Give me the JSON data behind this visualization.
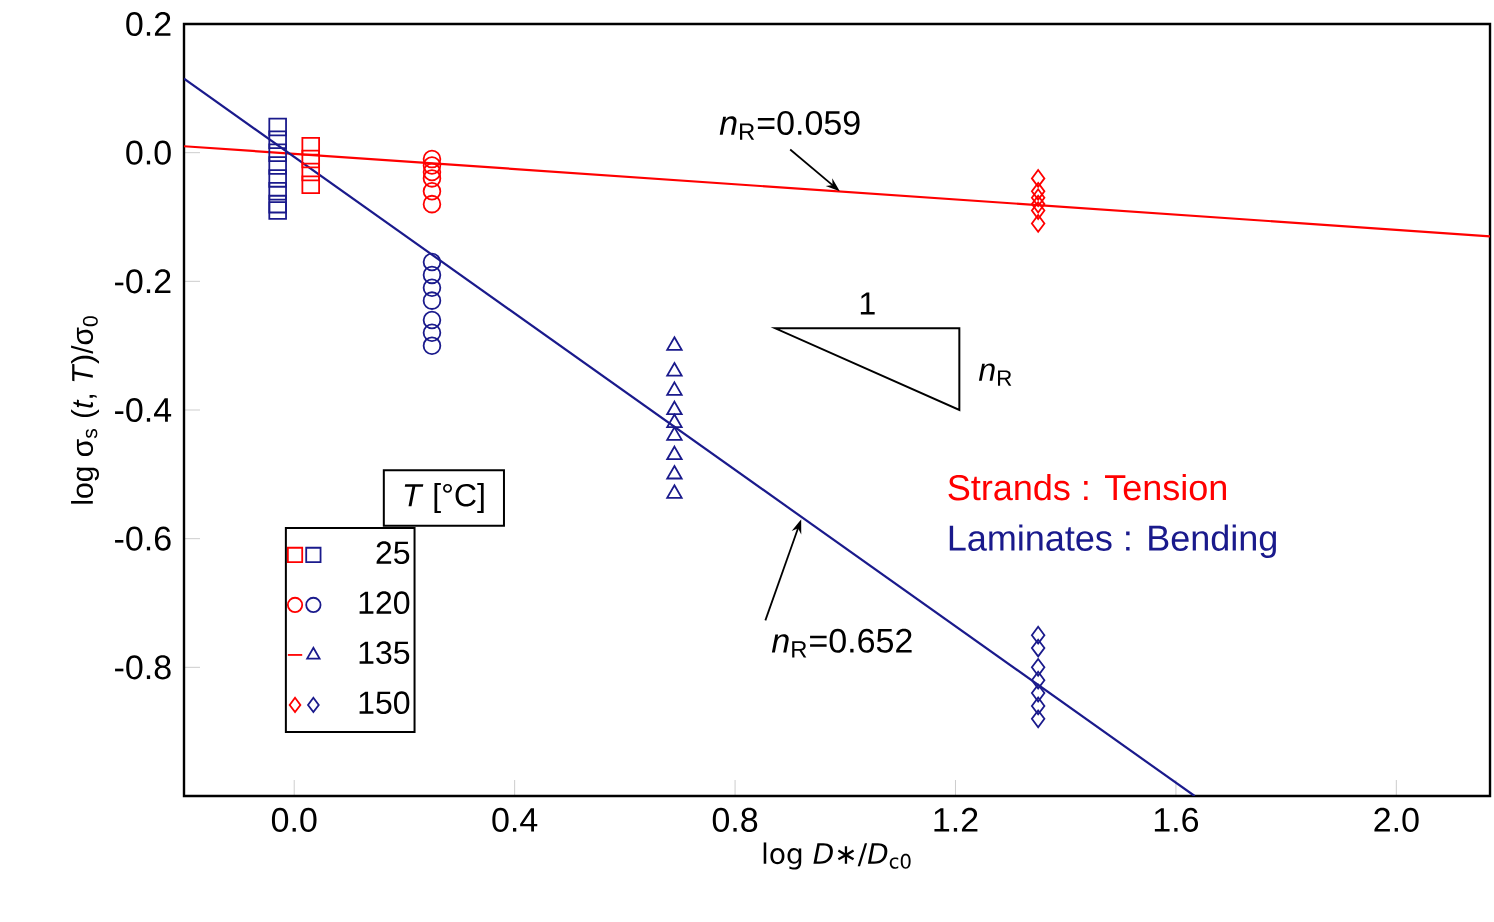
{
  "chart_data": {
    "type": "scatter",
    "xlabel": "log *D*∗/*D*$_{c0}$",
    "ylabel": "log σ$_{s}$ (*t*, *T*)/σ$_{0}$",
    "legend_title": "*T* [°C]",
    "legend": "bottom left",
    "grid": false,
    "xlim": [
      -0.2,
      2.17
    ],
    "ylim": [
      -1.0,
      0.2
    ],
    "xticks": [
      {
        "value": 0,
        "label": "0.0"
      },
      0.4,
      0.8,
      1.2,
      1.6,
      {
        "value": 2,
        "label": "2.0"
      }
    ],
    "yticks": [
      0.2,
      {
        "value": 0,
        "label": "0.0"
      },
      -0.2,
      -0.4,
      -0.6,
      -0.8
    ],
    "series": [
      {
        "color": "#ff0000",
        "marker": "square",
        "x": [
          0.03,
          0.03,
          0.03,
          0.03
        ],
        "values": [
          0.01,
          -0.01,
          -0.03,
          -0.05
        ]
      },
      {
        "color": "#ff0000",
        "marker": "circle",
        "x": [
          0.25,
          0.25,
          0.25,
          0.25,
          0.25,
          0.25
        ],
        "values": [
          -0.01,
          -0.02,
          -0.03,
          -0.04,
          -0.06,
          -0.08
        ]
      },
      {
        "color": "#ff0000",
        "marker": "minus"
      },
      {
        "color": "#ff0000",
        "marker": "diamond",
        "x": [
          1.35,
          1.35,
          1.35,
          1.35,
          1.35,
          1.35
        ],
        "values": [
          -0.04,
          -0.06,
          -0.07,
          -0.08,
          -0.09,
          -0.11
        ]
      },
      {
        "name": "25",
        "color": "#1a1a8c",
        "marker": "square",
        "x": [
          -0.03,
          -0.03,
          -0.03,
          -0.03,
          -0.03,
          -0.03,
          -0.03,
          -0.03
        ],
        "values": [
          0.04,
          0.02,
          0.0,
          -0.02,
          -0.04,
          -0.06,
          -0.08,
          -0.09
        ]
      },
      {
        "name": "120",
        "color": "#1a1a8c",
        "marker": "circle",
        "x": [
          0.25,
          0.25,
          0.25,
          0.25,
          0.25,
          0.25,
          0.25
        ],
        "values": [
          -0.17,
          -0.19,
          -0.21,
          -0.23,
          -0.26,
          -0.28,
          -0.3
        ]
      },
      {
        "name": "135",
        "color": "#1a1a8c",
        "marker": "triangle",
        "x": [
          0.69,
          0.69,
          0.69,
          0.69,
          0.69,
          0.69,
          0.69,
          0.69,
          0.69
        ],
        "values": [
          -0.3,
          -0.34,
          -0.37,
          -0.4,
          -0.42,
          -0.44,
          -0.47,
          -0.5,
          -0.53
        ]
      },
      {
        "name": "150",
        "color": "#1a1a8c",
        "marker": "diamond",
        "x": [
          1.35,
          1.35,
          1.35,
          1.35,
          1.35,
          1.35,
          1.35
        ],
        "values": [
          -0.75,
          -0.77,
          -0.8,
          -0.82,
          -0.84,
          -0.86,
          -0.88
        ]
      },
      {
        "type": "line",
        "color": "#ff0000",
        "marker": "none",
        "x": [
          -0.2,
          2.17
        ],
        "values": [
          0.01,
          -0.13
        ]
      },
      {
        "type": "line",
        "color": "#1a1a8c",
        "marker": "none",
        "x": [
          -0.2,
          1.634
        ],
        "values": [
          0.115,
          -1.0
        ]
      }
    ],
    "annotations": [
      {
        "text": "*n*$_{R}$=0.059",
        "x": 0.99,
        "y": -0.06
      },
      {
        "text": "*n*$_{R}$=0.652",
        "x": 0.92,
        "y": -0.57
      },
      "Strands : Tension",
      "Laminates : Bending",
      "1",
      "*n*$_{R}$"
    ]
  }
}
